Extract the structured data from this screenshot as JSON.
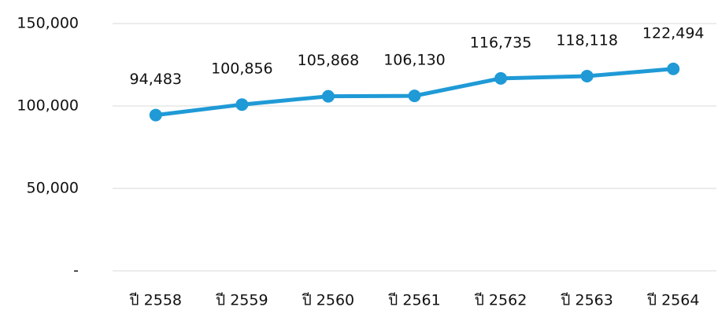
{
  "chart_data": {
    "type": "line",
    "categories": [
      "ปี 2558",
      "ปี 2559",
      "ปี 2560",
      "ปี 2561",
      "ปี 2562",
      "ปี 2563",
      "ปี 2564"
    ],
    "series": [
      {
        "color": "#1f9ad6",
        "values": [
          94483,
          100856,
          105868,
          106130,
          116735,
          118118,
          122494
        ],
        "value_labels": [
          "94,483",
          "100,856",
          "105,868",
          "106,130",
          "116,735",
          "118,118",
          "122,494"
        ]
      }
    ],
    "ylim": [
      0,
      150000
    ],
    "yticks": [
      {
        "value": 0,
        "label": "-"
      },
      {
        "value": 50000,
        "label": "50,000"
      },
      {
        "value": 100000,
        "label": "100,000"
      },
      {
        "value": 150000,
        "label": "150,000"
      }
    ],
    "grid": true
  }
}
